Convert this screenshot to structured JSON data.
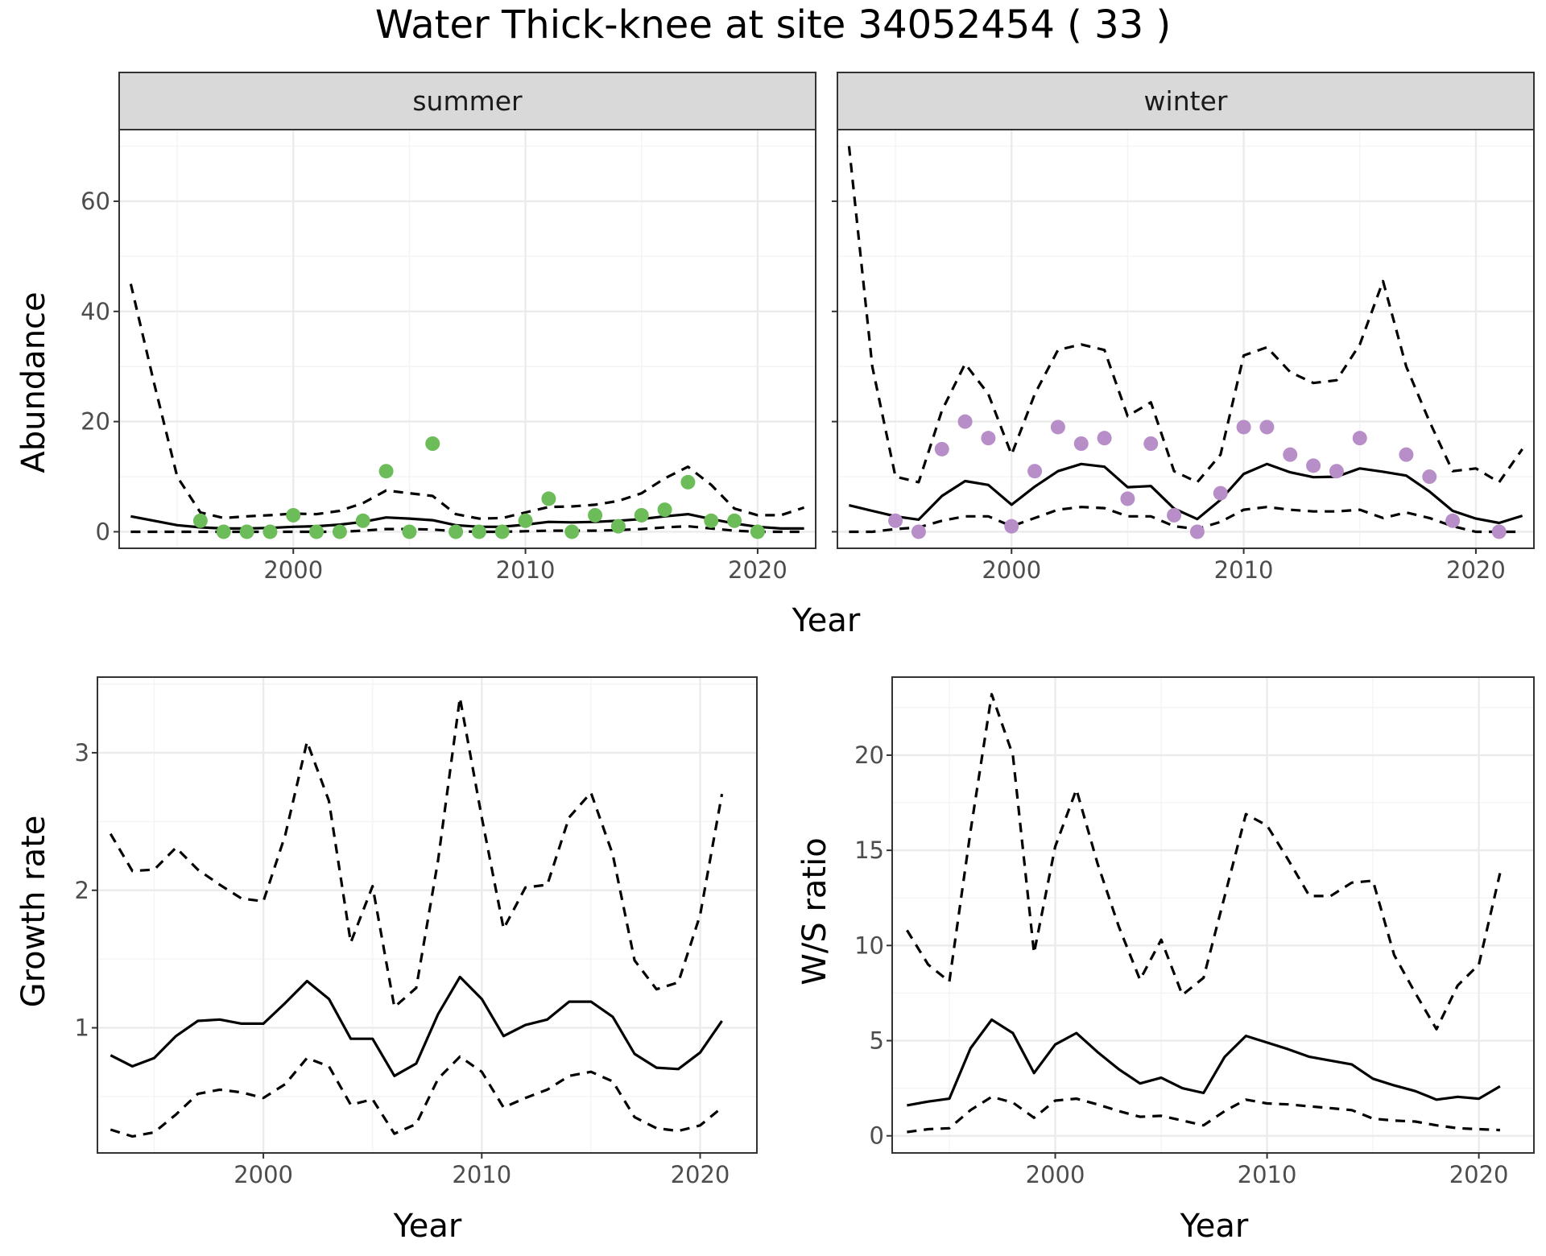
{
  "title": "Water Thick-knee at site 34052454 ( 33 )",
  "chart_data": [
    {
      "id": "abundance-summer",
      "type": "line",
      "facet": "summer",
      "xlabel": "Year",
      "ylabel": "Abundance",
      "xlim": [
        1992.5,
        2022.5
      ],
      "ylim": [
        -3,
        73
      ],
      "xticks": [
        2000,
        2010,
        2020
      ],
      "yticks": [
        0,
        20,
        40,
        60
      ],
      "grid": true,
      "point_color": "#6dbc5a",
      "x": [
        1993,
        1994,
        1995,
        1996,
        1997,
        1998,
        1999,
        2000,
        2001,
        2002,
        2003,
        2004,
        2005,
        2006,
        2007,
        2008,
        2009,
        2010,
        2011,
        2012,
        2013,
        2014,
        2015,
        2016,
        2017,
        2018,
        2019,
        2020,
        2021,
        2022
      ],
      "estimate": [
        2.8,
        2.0,
        1.2,
        0.8,
        0.6,
        0.6,
        0.7,
        0.9,
        1.0,
        1.3,
        1.8,
        2.6,
        2.4,
        2.1,
        1.2,
        0.9,
        0.9,
        1.3,
        1.8,
        1.7,
        1.8,
        2.0,
        2.3,
        2.8,
        3.2,
        2.3,
        1.5,
        0.9,
        0.6,
        0.6
      ],
      "upper": [
        45,
        27,
        10,
        3.5,
        2.5,
        2.8,
        3.0,
        3.3,
        3.2,
        3.8,
        5.2,
        7.5,
        7.0,
        6.5,
        3.2,
        2.4,
        2.5,
        3.5,
        4.5,
        4.6,
        4.9,
        5.6,
        7.0,
        9.7,
        11.8,
        8.5,
        4.2,
        3.0,
        3.0,
        4.4
      ],
      "lower": [
        0,
        0,
        0,
        0,
        0,
        0,
        0,
        0,
        0,
        0,
        0.2,
        0.5,
        0.5,
        0.4,
        0.1,
        0,
        0,
        0.1,
        0.2,
        0.2,
        0.2,
        0.3,
        0.5,
        0.8,
        1.0,
        0.6,
        0.2,
        0,
        0,
        0
      ],
      "points": {
        "x": [
          1996,
          1997,
          1998,
          1999,
          2000,
          2001,
          2002,
          2003,
          2004,
          2005,
          2006,
          2007,
          2008,
          2009,
          2010,
          2011,
          2012,
          2013,
          2014,
          2015,
          2016,
          2017,
          2018,
          2019,
          2020
        ],
        "y": [
          2,
          0,
          0,
          0,
          3,
          0,
          0,
          2,
          11,
          0,
          16,
          0,
          0,
          0,
          2,
          6,
          0,
          3,
          1,
          3,
          4,
          9,
          2,
          2,
          0
        ]
      }
    },
    {
      "id": "abundance-winter",
      "type": "line",
      "facet": "winter",
      "xlabel": "Year",
      "ylabel": "Abundance",
      "xlim": [
        1992.5,
        2022.5
      ],
      "ylim": [
        -3,
        73
      ],
      "xticks": [
        2000,
        2010,
        2020
      ],
      "yticks": [
        0,
        20,
        40,
        60
      ],
      "grid": true,
      "point_color": "#b88ec8",
      "x": [
        1993,
        1994,
        1995,
        1996,
        1997,
        1998,
        1999,
        2000,
        2001,
        2002,
        2003,
        2004,
        2005,
        2006,
        2007,
        2008,
        2009,
        2010,
        2011,
        2012,
        2013,
        2014,
        2015,
        2016,
        2017,
        2018,
        2019,
        2020,
        2021,
        2022
      ],
      "estimate": [
        4.8,
        3.8,
        2.8,
        2.2,
        6.5,
        9.2,
        8.5,
        4.9,
        8.2,
        11.0,
        12.3,
        11.8,
        8.1,
        8.3,
        4.2,
        2.3,
        5.8,
        10.5,
        12.3,
        10.8,
        9.9,
        10.0,
        11.5,
        10.9,
        10.2,
        7.3,
        3.8,
        2.4,
        1.6,
        2.9
      ],
      "upper": [
        70,
        30,
        10,
        9,
        22,
        30.5,
        25,
        14,
        25,
        33,
        34,
        33,
        21,
        23.5,
        11,
        9,
        14,
        32,
        33.5,
        29,
        27,
        27.5,
        34,
        45.5,
        30,
        20,
        11,
        11.5,
        9,
        15
      ],
      "lower": [
        0,
        0,
        0.5,
        0.8,
        2.0,
        2.8,
        2.8,
        1.0,
        2.5,
        4.0,
        4.5,
        4.3,
        2.8,
        2.8,
        1.0,
        0.5,
        1.8,
        4.0,
        4.5,
        4.0,
        3.7,
        3.7,
        4.0,
        2.5,
        3.5,
        2.5,
        1.0,
        0,
        0,
        0
      ],
      "points": {
        "x": [
          1995,
          1996,
          1997,
          1998,
          1999,
          2000,
          2001,
          2002,
          2003,
          2004,
          2005,
          2006,
          2007,
          2008,
          2009,
          2010,
          2011,
          2012,
          2013,
          2014,
          2015,
          2017,
          2018,
          2019,
          2021
        ],
        "y": [
          2,
          0,
          15,
          20,
          17,
          1,
          11,
          19,
          16,
          17,
          6,
          16,
          3,
          0,
          7,
          19,
          19,
          14,
          12,
          11,
          17,
          14,
          10,
          2,
          0
        ]
      }
    },
    {
      "id": "growth-rate",
      "type": "line",
      "xlabel": "Year",
      "ylabel": "Growth rate",
      "xlim": [
        1992.4,
        2022.6
      ],
      "ylim": [
        0.09,
        3.55
      ],
      "xticks": [
        2000,
        2010,
        2020
      ],
      "yticks": [
        1,
        2,
        3
      ],
      "grid": true,
      "x": [
        1993,
        1994,
        1995,
        1996,
        1997,
        1998,
        1999,
        2000,
        2001,
        2002,
        2003,
        2004,
        2005,
        2006,
        2007,
        2008,
        2009,
        2010,
        2011,
        2012,
        2013,
        2014,
        2015,
        2016,
        2017,
        2018,
        2019,
        2020,
        2021
      ],
      "estimate": [
        0.8,
        0.72,
        0.78,
        0.94,
        1.05,
        1.06,
        1.03,
        1.03,
        1.18,
        1.34,
        1.21,
        0.92,
        0.92,
        0.65,
        0.74,
        1.1,
        1.37,
        1.21,
        0.94,
        1.02,
        1.06,
        1.19,
        1.19,
        1.08,
        0.81,
        0.71,
        0.7,
        0.82,
        1.05
      ],
      "upper": [
        2.41,
        2.14,
        2.15,
        2.31,
        2.15,
        2.04,
        1.94,
        1.92,
        2.4,
        3.08,
        2.65,
        1.62,
        2.03,
        1.15,
        1.29,
        2.22,
        3.4,
        2.53,
        1.72,
        2.02,
        2.04,
        2.53,
        2.71,
        2.26,
        1.49,
        1.28,
        1.33,
        1.82,
        2.7
      ],
      "lower": [
        0.26,
        0.21,
        0.24,
        0.37,
        0.52,
        0.55,
        0.53,
        0.49,
        0.59,
        0.78,
        0.72,
        0.44,
        0.48,
        0.23,
        0.3,
        0.63,
        0.79,
        0.68,
        0.42,
        0.49,
        0.55,
        0.65,
        0.68,
        0.61,
        0.35,
        0.27,
        0.25,
        0.29,
        0.42
      ]
    },
    {
      "id": "ws-ratio",
      "type": "line",
      "xlabel": "Year",
      "ylabel": "W/S ratio",
      "xlim": [
        1992.3,
        2022.6
      ],
      "ylim": [
        -0.9,
        24.1
      ],
      "xticks": [
        2000,
        2010,
        2020
      ],
      "yticks": [
        0,
        5,
        10,
        15,
        20
      ],
      "grid": true,
      "x": [
        1993,
        1994,
        1995,
        1996,
        1997,
        1998,
        1999,
        2000,
        2001,
        2002,
        2003,
        2004,
        2005,
        2006,
        2007,
        2008,
        2009,
        2010,
        2011,
        2012,
        2013,
        2014,
        2015,
        2016,
        2017,
        2018,
        2019,
        2020,
        2021
      ],
      "estimate": [
        1.6,
        1.8,
        1.95,
        4.6,
        6.1,
        5.4,
        3.3,
        4.8,
        5.4,
        4.4,
        3.5,
        2.75,
        3.05,
        2.5,
        2.25,
        4.15,
        5.25,
        4.9,
        4.55,
        4.15,
        3.95,
        3.75,
        3.0,
        2.65,
        2.35,
        1.9,
        2.05,
        1.95,
        2.6
      ],
      "upper": [
        10.8,
        9.0,
        8.1,
        16.0,
        23.2,
        20.0,
        9.6,
        15.2,
        18.2,
        14.3,
        11.0,
        8.2,
        10.3,
        7.4,
        8.3,
        12.6,
        16.9,
        16.3,
        14.5,
        12.6,
        12.6,
        13.3,
        13.4,
        9.5,
        7.5,
        5.6,
        7.9,
        9.0,
        13.8
      ],
      "lower": [
        0.2,
        0.35,
        0.4,
        1.35,
        2.05,
        1.75,
        0.95,
        1.85,
        1.95,
        1.65,
        1.3,
        1.0,
        1.05,
        0.8,
        0.55,
        1.3,
        1.9,
        1.7,
        1.65,
        1.55,
        1.45,
        1.35,
        0.9,
        0.8,
        0.75,
        0.55,
        0.4,
        0.35,
        0.3
      ]
    }
  ]
}
